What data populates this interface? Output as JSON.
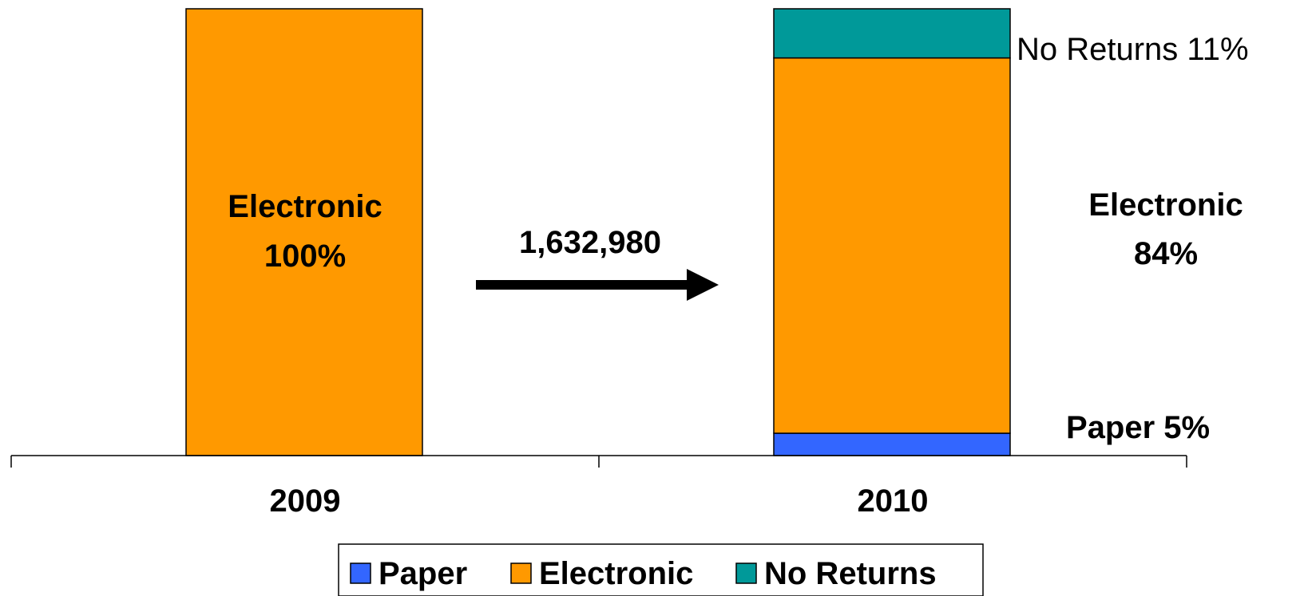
{
  "chart_data": {
    "type": "bar",
    "stacked": true,
    "categories": [
      "2009",
      "2010"
    ],
    "series": [
      {
        "name": "Paper",
        "color": "#3366FF",
        "values": [
          0,
          5
        ]
      },
      {
        "name": "Electronic",
        "color": "#FF9900",
        "values": [
          100,
          84
        ]
      },
      {
        "name": "No Returns",
        "color": "#009999",
        "values": [
          0,
          11
        ]
      }
    ],
    "ylim": [
      0,
      100
    ],
    "legend_position": "bottom",
    "data_labels": {
      "bar_2009_electronic_line1": "Electronic",
      "bar_2009_electronic_line2": "100%",
      "bar_2010_electronic_line1": "Electronic",
      "bar_2010_electronic_line2": "84%",
      "bar_2010_paper": "Paper 5%",
      "bar_2010_no_returns": "No Returns 11%"
    },
    "annotation": {
      "text": "1,632,980",
      "arrow": "right"
    }
  }
}
